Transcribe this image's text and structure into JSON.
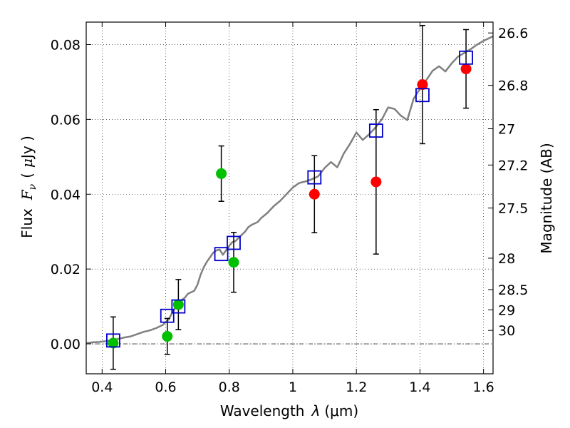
{
  "chart_data": {
    "type": "scatter",
    "xlabel_text": "Wavelength",
    "xlabel_symbol": "λ",
    "xlabel_unit": "(μm)",
    "ylabel_text": "Flux",
    "ylabel_symbol": "F",
    "ylabel_subscript": "ν",
    "ylabel_unit_open": "(",
    "ylabel_unit_sym": "μ",
    "ylabel_unit_rest": "Jy )",
    "y2label": "Magnitude (AB)",
    "xlim": [
      0.35,
      1.63
    ],
    "ylim": [
      -0.008,
      0.086
    ],
    "x_ticks": [
      0.4,
      0.6,
      0.8,
      1.0,
      1.2,
      1.4,
      1.6
    ],
    "x_tick_labels": [
      "0.4",
      "0.6",
      "0.8",
      "1",
      "1.2",
      "1.4",
      "1.6"
    ],
    "y_ticks": [
      0.0,
      0.02,
      0.04,
      0.06,
      0.08
    ],
    "y_tick_labels": [
      "0.00",
      "0.02",
      "0.04",
      "0.06",
      "0.08"
    ],
    "y2_ticks": [
      {
        "label": "26.6",
        "flux": 0.0831
      },
      {
        "label": "26.8",
        "flux": 0.0691
      },
      {
        "label": "27",
        "flux": 0.0575
      },
      {
        "label": "27.2",
        "flux": 0.0478
      },
      {
        "label": "27.5",
        "flux": 0.0363
      },
      {
        "label": "28",
        "flux": 0.0229
      },
      {
        "label": "28.5",
        "flux": 0.0145
      },
      {
        "label": "29",
        "flux": 0.0091
      },
      {
        "label": "30",
        "flux": 0.0036
      }
    ],
    "grid": true,
    "zero_line": true,
    "colors": {
      "model_line": "#808080",
      "green_points": "#00c000",
      "red_points": "#ff0000",
      "model_boxes": "#0000cc",
      "error_bars": "#000000"
    },
    "series": [
      {
        "kind": "line",
        "points": [
          [
            0.35,
            0.0002
          ],
          [
            0.37,
            0.0004
          ],
          [
            0.39,
            0.0005
          ],
          [
            0.41,
            0.0007
          ],
          [
            0.43,
            0.001
          ],
          [
            0.45,
            0.0013
          ],
          [
            0.47,
            0.0017
          ],
          [
            0.49,
            0.002
          ],
          [
            0.51,
            0.0026
          ],
          [
            0.53,
            0.0032
          ],
          [
            0.55,
            0.0036
          ],
          [
            0.57,
            0.0042
          ],
          [
            0.59,
            0.005
          ],
          [
            0.6,
            0.0058
          ],
          [
            0.61,
            0.0066
          ],
          [
            0.62,
            0.0082
          ],
          [
            0.63,
            0.0096
          ],
          [
            0.64,
            0.0108
          ],
          [
            0.65,
            0.0117
          ],
          [
            0.66,
            0.0123
          ],
          [
            0.67,
            0.0134
          ],
          [
            0.68,
            0.0138
          ],
          [
            0.69,
            0.0142
          ],
          [
            0.7,
            0.0158
          ],
          [
            0.71,
            0.0185
          ],
          [
            0.72,
            0.0205
          ],
          [
            0.73,
            0.022
          ],
          [
            0.74,
            0.0232
          ],
          [
            0.75,
            0.0244
          ],
          [
            0.76,
            0.025
          ],
          [
            0.77,
            0.0252
          ],
          [
            0.78,
            0.0238
          ],
          [
            0.79,
            0.025
          ],
          [
            0.8,
            0.0262
          ],
          [
            0.81,
            0.0272
          ],
          [
            0.82,
            0.0275
          ],
          [
            0.83,
            0.0284
          ],
          [
            0.84,
            0.0292
          ],
          [
            0.85,
            0.03
          ],
          [
            0.86,
            0.0312
          ],
          [
            0.87,
            0.0318
          ],
          [
            0.88,
            0.0322
          ],
          [
            0.89,
            0.0326
          ],
          [
            0.9,
            0.0336
          ],
          [
            0.92,
            0.035
          ],
          [
            0.94,
            0.0368
          ],
          [
            0.96,
            0.0382
          ],
          [
            0.98,
            0.04
          ],
          [
            1.0,
            0.0418
          ],
          [
            1.02,
            0.043
          ],
          [
            1.04,
            0.0434
          ],
          [
            1.06,
            0.044
          ],
          [
            1.08,
            0.0448
          ],
          [
            1.1,
            0.047
          ],
          [
            1.12,
            0.0486
          ],
          [
            1.14,
            0.0472
          ],
          [
            1.16,
            0.0508
          ],
          [
            1.18,
            0.0535
          ],
          [
            1.2,
            0.0565
          ],
          [
            1.22,
            0.0545
          ],
          [
            1.24,
            0.056
          ],
          [
            1.26,
            0.0578
          ],
          [
            1.28,
            0.06
          ],
          [
            1.3,
            0.0632
          ],
          [
            1.32,
            0.0628
          ],
          [
            1.34,
            0.061
          ],
          [
            1.36,
            0.0598
          ],
          [
            1.38,
            0.0655
          ],
          [
            1.4,
            0.0682
          ],
          [
            1.42,
            0.0705
          ],
          [
            1.44,
            0.073
          ],
          [
            1.46,
            0.0742
          ],
          [
            1.48,
            0.0728
          ],
          [
            1.5,
            0.075
          ],
          [
            1.52,
            0.0768
          ],
          [
            1.54,
            0.0778
          ],
          [
            1.56,
            0.0788
          ],
          [
            1.58,
            0.08
          ],
          [
            1.6,
            0.081
          ],
          [
            1.62,
            0.0818
          ],
          [
            1.63,
            0.0822
          ]
        ]
      },
      {
        "kind": "green-points",
        "points": [
          {
            "x": 0.435,
            "y": 0.0002,
            "err": 0.007
          },
          {
            "x": 0.605,
            "y": 0.002,
            "err": 0.0048
          },
          {
            "x": 0.64,
            "y": 0.0105,
            "err": 0.0067
          },
          {
            "x": 0.775,
            "y": 0.0455,
            "err": 0.0074
          },
          {
            "x": 0.814,
            "y": 0.0218,
            "err": 0.008
          }
        ]
      },
      {
        "kind": "red-points",
        "points": [
          {
            "x": 1.068,
            "y": 0.04,
            "err": 0.0103
          },
          {
            "x": 1.262,
            "y": 0.0433,
            "err": 0.0193
          },
          {
            "x": 1.408,
            "y": 0.0693,
            "err": 0.0158
          },
          {
            "x": 1.545,
            "y": 0.0735,
            "err": 0.0105
          }
        ]
      },
      {
        "kind": "model-boxes",
        "points": [
          {
            "x": 0.435,
            "y": 0.0009
          },
          {
            "x": 0.605,
            "y": 0.0075
          },
          {
            "x": 0.64,
            "y": 0.01
          },
          {
            "x": 0.775,
            "y": 0.024
          },
          {
            "x": 0.814,
            "y": 0.027
          },
          {
            "x": 1.068,
            "y": 0.0445
          },
          {
            "x": 1.262,
            "y": 0.057
          },
          {
            "x": 1.408,
            "y": 0.0665
          },
          {
            "x": 1.545,
            "y": 0.0765
          }
        ]
      }
    ]
  }
}
